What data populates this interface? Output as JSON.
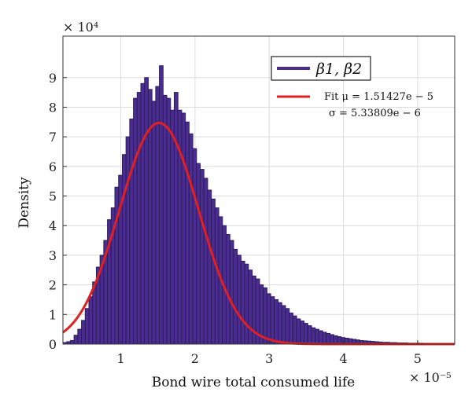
{
  "chart_data": {
    "type": "bar",
    "xlabel": "Bond wire total consumed life",
    "ylabel": "Density",
    "x_exponent": "× 10⁻⁵",
    "y_exponent": "× 10⁴",
    "xlim": [
      0.22,
      5.5
    ],
    "ylim": [
      0,
      10.4
    ],
    "x_scale": 1e-05,
    "y_scale": 10000,
    "x_ticks": [
      1,
      2,
      3,
      4,
      5
    ],
    "x_tick_labels": [
      "1",
      "2",
      "3",
      "4",
      "5"
    ],
    "y_ticks": [
      0,
      1,
      2,
      3,
      4,
      5,
      6,
      7,
      8,
      9
    ],
    "y_tick_labels": [
      "0",
      "1",
      "2",
      "3",
      "4",
      "5",
      "6",
      "7",
      "8",
      "9"
    ],
    "grid": true,
    "legend_position": "top-right",
    "bin_start": 0.22,
    "bin_width": 0.05,
    "bar_values": [
      0.05,
      0.08,
      0.12,
      0.3,
      0.5,
      0.8,
      1.2,
      1.6,
      2.1,
      2.6,
      3.0,
      3.5,
      4.2,
      4.6,
      5.3,
      5.7,
      6.4,
      7.0,
      7.6,
      8.3,
      8.5,
      8.8,
      9.0,
      8.6,
      8.2,
      8.7,
      9.4,
      8.4,
      8.3,
      7.9,
      8.5,
      7.9,
      7.8,
      7.5,
      7.1,
      6.6,
      6.1,
      5.9,
      5.6,
      5.2,
      4.9,
      4.6,
      4.3,
      4.0,
      3.7,
      3.5,
      3.2,
      3.0,
      2.8,
      2.7,
      2.5,
      2.3,
      2.2,
      2.0,
      1.9,
      1.7,
      1.6,
      1.5,
      1.4,
      1.3,
      1.2,
      1.05,
      0.95,
      0.85,
      0.78,
      0.7,
      0.62,
      0.55,
      0.5,
      0.45,
      0.4,
      0.36,
      0.32,
      0.28,
      0.25,
      0.22,
      0.2,
      0.18,
      0.16,
      0.14,
      0.12,
      0.11,
      0.1,
      0.09,
      0.08,
      0.07,
      0.06,
      0.06,
      0.05,
      0.05,
      0.04,
      0.04,
      0.04,
      0.03,
      0.03,
      0.03,
      0.03,
      0.02,
      0.02,
      0.02,
      0.02,
      0.02,
      0.02,
      0.02,
      0.02,
      0.02,
      0.02,
      0.02,
      0.02,
      0.02,
      0.02,
      0.01,
      0.01,
      0.01,
      0.01,
      0.01,
      0.01,
      0.01,
      0.01,
      0.01,
      0.01,
      0.01,
      0.01,
      0.01,
      0.01,
      0.01,
      0.01,
      0.01,
      0.01,
      0.01,
      0.01,
      0.01,
      0.01,
      0.01,
      0.01,
      0.01,
      0.01,
      0.01,
      0.01,
      0.01,
      0.01,
      0.01,
      0.01,
      0.01,
      0.01,
      0.01,
      0.01,
      0.01,
      0.01,
      0.01,
      0.01,
      0.01,
      0.01,
      0.01,
      0.01,
      0.01,
      0.01,
      0.01,
      0.01,
      0.01,
      0.01,
      0.01,
      0.01,
      0.01,
      0.01,
      0.01,
      0.01,
      0.01,
      0.01,
      0.01,
      0.01,
      0.01,
      0.01,
      0.01,
      0.01,
      0.01,
      0.01,
      0.01,
      0.01,
      0.01,
      0.01,
      0.01,
      0.01,
      0.01,
      0.01,
      0.01,
      0.01,
      0.01,
      0.01,
      0.01,
      0.01,
      0.01,
      0.01,
      0.01,
      0.01,
      0.01,
      0.01,
      0.01,
      0.01
    ],
    "fit": {
      "mu": 1.51427,
      "sigma": 0.533809,
      "peak": 7.47,
      "label_line1": "Fit μ = 1.51427e − 5",
      "label_line2": "σ = 5.33809e − 6"
    },
    "series": [
      {
        "name": "β1, β2",
        "color": "#4b2c8f",
        "edge_color": "#2a1b5e"
      },
      {
        "name": "Fit",
        "color": "#e02020"
      }
    ]
  }
}
